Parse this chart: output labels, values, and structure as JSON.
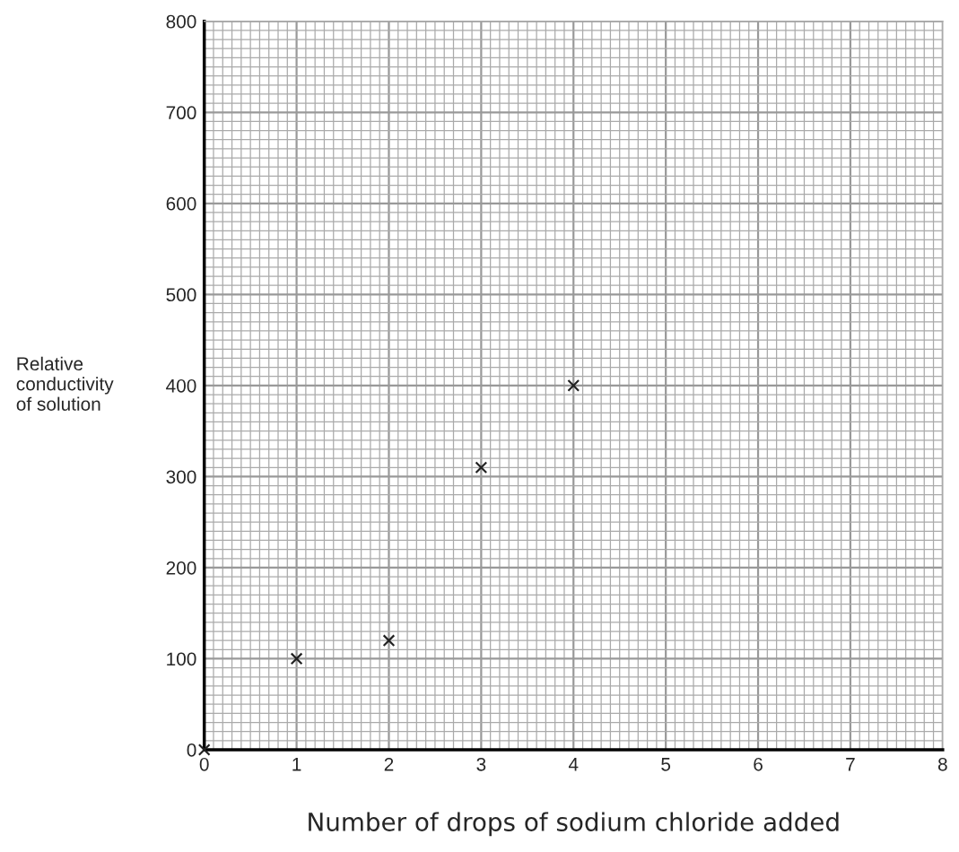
{
  "chart_data": {
    "type": "scatter",
    "xlabel": "Number of drops of sodium chloride added",
    "ylabel": "Relative\nconductivity\nof solution",
    "x": [
      0,
      1,
      2,
      3,
      4
    ],
    "values": [
      0,
      100,
      120,
      310,
      400
    ],
    "color": "#222222",
    "marker": "cross",
    "xlim": [
      0,
      8
    ],
    "xticks": [
      0,
      1,
      2,
      3,
      4,
      5,
      6,
      7,
      8
    ],
    "ylim": [
      0,
      800
    ],
    "yticks": [
      0,
      100,
      200,
      300,
      400,
      500,
      600,
      700,
      800
    ],
    "grid": true
  }
}
